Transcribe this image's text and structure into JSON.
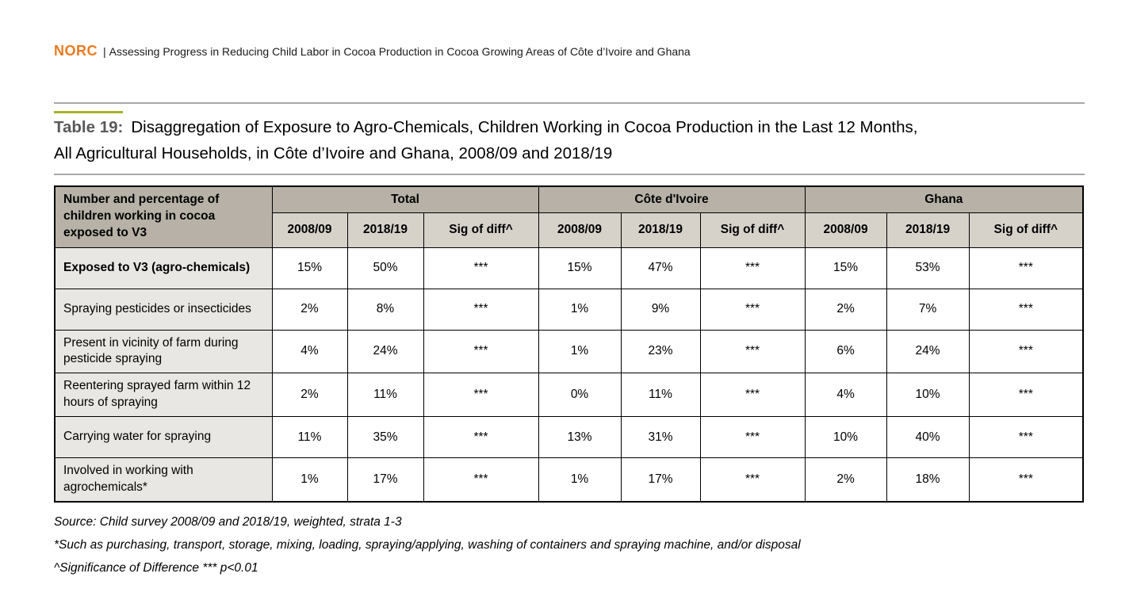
{
  "header": {
    "brand": "NORC",
    "separator": "|",
    "report_title": "Assessing Progress in Reducing Child Labor in Cocoa Production in Cocoa Growing Areas of Côte d’Ivoire and Ghana"
  },
  "caption": {
    "label": "Table 19:",
    "line1": "Disaggregation of Exposure to Agro-Chemicals, Children Working in Cocoa Production in the Last 12 Months,",
    "line2": "All Agricultural Households, in Côte d’Ivoire and Ghana, 2008/09 and 2018/19"
  },
  "table": {
    "stub": "Number and percentage of children working in cocoa exposed to V3",
    "groups": [
      {
        "label": "Total",
        "cols": [
          "2008/09",
          "2018/19",
          "Sig of diff^"
        ]
      },
      {
        "label": "Côte d'Ivoire",
        "cols": [
          "2008/09",
          "2018/19",
          "Sig of diff^"
        ]
      },
      {
        "label": "Ghana",
        "cols": [
          "2008/09",
          "2018/19",
          "Sig of diff^"
        ]
      }
    ],
    "rows": [
      {
        "label": "Exposed to V3 (agro-chemicals)",
        "bold": true,
        "values": [
          "15%",
          "50%",
          "***",
          "15%",
          "47%",
          "***",
          "15%",
          "53%",
          "***"
        ]
      },
      {
        "label": "Spraying pesticides or insecticides",
        "bold": false,
        "values": [
          "2%",
          "8%",
          "***",
          "1%",
          "9%",
          "***",
          "2%",
          "7%",
          "***"
        ]
      },
      {
        "label": "Present in vicinity of farm during pesticide spraying",
        "bold": false,
        "values": [
          "4%",
          "24%",
          "***",
          "1%",
          "23%",
          "***",
          "6%",
          "24%",
          "***"
        ]
      },
      {
        "label": "Reentering sprayed farm within 12 hours of spraying",
        "bold": false,
        "values": [
          "2%",
          "11%",
          "***",
          "0%",
          "11%",
          "***",
          "4%",
          "10%",
          "***"
        ]
      },
      {
        "label": "Carrying water for spraying",
        "bold": false,
        "values": [
          "11%",
          "35%",
          "***",
          "13%",
          "31%",
          "***",
          "10%",
          "40%",
          "***"
        ]
      },
      {
        "label": "Involved in working with agrochemicals*",
        "bold": false,
        "values": [
          "1%",
          "17%",
          "***",
          "1%",
          "17%",
          "***",
          "2%",
          "18%",
          "***"
        ]
      }
    ]
  },
  "notes": [
    "Source: Child survey 2008/09 and 2018/19, weighted, strata 1-3",
    "*Such as purchasing, transport, storage, mixing, loading, spraying/applying, washing of containers and spraying machine, and/or disposal",
    "^Significance of Difference *** p<0.01"
  ],
  "colors": {
    "brand_orange": "#E87A22",
    "caption_gray": "#595959",
    "caption_overline_green": "#A9B32A",
    "header_group_bg": "#B8B1A7",
    "header_sub_bg": "#D6D2CA",
    "row_label_bg": "#E9E7E3",
    "rule_gray": "#A8A8A8",
    "border_black": "#000000"
  }
}
